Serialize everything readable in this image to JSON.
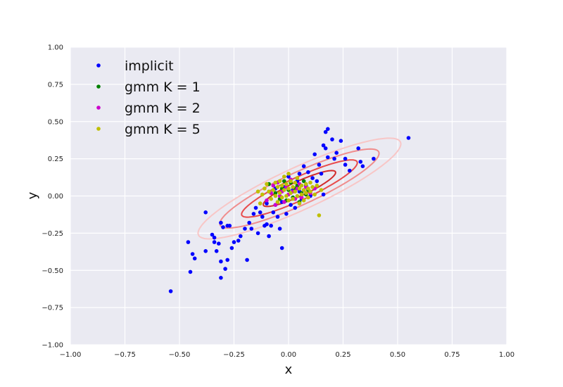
{
  "chart_data": {
    "type": "scatter",
    "title": "",
    "xlabel": "x",
    "ylabel": "y",
    "xlim": [
      -1.0,
      1.0
    ],
    "ylim": [
      -1.0,
      1.0
    ],
    "xticks": [
      "−1.00",
      "−0.75",
      "−0.50",
      "−0.25",
      "0.00",
      "0.25",
      "0.50",
      "0.75",
      "1.00"
    ],
    "yticks": [
      "−1.00",
      "−0.75",
      "−0.50",
      "−0.25",
      "0.00",
      "0.25",
      "0.50",
      "0.75",
      "1.00"
    ],
    "grid": true,
    "legend_position": "top-left",
    "background": "#eaeaf2",
    "series": [
      {
        "name": "implicit",
        "color": "#0000ff",
        "points": [
          [
            -0.54,
            -0.64
          ],
          [
            -0.46,
            -0.31
          ],
          [
            -0.45,
            -0.51
          ],
          [
            -0.44,
            -0.39
          ],
          [
            -0.43,
            -0.42
          ],
          [
            -0.38,
            -0.11
          ],
          [
            -0.38,
            -0.37
          ],
          [
            -0.35,
            -0.26
          ],
          [
            -0.34,
            -0.28
          ],
          [
            -0.34,
            -0.31
          ],
          [
            -0.33,
            -0.37
          ],
          [
            -0.32,
            -0.32
          ],
          [
            -0.31,
            -0.55
          ],
          [
            -0.31,
            -0.18
          ],
          [
            -0.31,
            -0.44
          ],
          [
            -0.3,
            -0.21
          ],
          [
            -0.29,
            -0.49
          ],
          [
            -0.28,
            -0.43
          ],
          [
            -0.28,
            -0.2
          ],
          [
            -0.27,
            -0.2
          ],
          [
            -0.26,
            -0.35
          ],
          [
            -0.25,
            -0.31
          ],
          [
            -0.23,
            -0.3
          ],
          [
            -0.22,
            -0.27
          ],
          [
            -0.2,
            -0.22
          ],
          [
            -0.19,
            -0.43
          ],
          [
            -0.18,
            -0.18
          ],
          [
            -0.17,
            -0.22
          ],
          [
            -0.16,
            -0.12
          ],
          [
            -0.15,
            -0.08
          ],
          [
            -0.14,
            -0.25
          ],
          [
            -0.13,
            -0.11
          ],
          [
            -0.12,
            -0.14
          ],
          [
            -0.11,
            -0.2
          ],
          [
            -0.1,
            -0.05
          ],
          [
            -0.1,
            -0.19
          ],
          [
            -0.09,
            -0.27
          ],
          [
            -0.08,
            -0.2
          ],
          [
            -0.07,
            -0.11
          ],
          [
            -0.06,
            -0.06
          ],
          [
            -0.05,
            -0.14
          ],
          [
            -0.04,
            -0.22
          ],
          [
            -0.03,
            -0.35
          ],
          [
            -0.03,
            -0.04
          ],
          [
            -0.02,
            0.06
          ],
          [
            -0.01,
            -0.12
          ],
          [
            0.0,
            0.13
          ],
          [
            0.01,
            -0.06
          ],
          [
            0.02,
            0.04
          ],
          [
            0.03,
            -0.08
          ],
          [
            0.04,
            0.1
          ],
          [
            0.05,
            0.03
          ],
          [
            0.06,
            -0.02
          ],
          [
            0.07,
            0.2
          ],
          [
            0.08,
            0.07
          ],
          [
            0.09,
            0.16
          ],
          [
            0.1,
            0.0
          ],
          [
            0.11,
            0.12
          ],
          [
            0.12,
            0.28
          ],
          [
            0.13,
            0.1
          ],
          [
            0.14,
            0.21
          ],
          [
            0.15,
            0.15
          ],
          [
            0.16,
            0.34
          ],
          [
            0.17,
            0.32
          ],
          [
            0.17,
            0.43
          ],
          [
            0.18,
            0.45
          ],
          [
            0.18,
            0.26
          ],
          [
            0.2,
            0.38
          ],
          [
            0.21,
            0.25
          ],
          [
            0.22,
            0.29
          ],
          [
            0.24,
            0.37
          ],
          [
            0.26,
            0.25
          ],
          [
            0.26,
            0.21
          ],
          [
            0.28,
            0.17
          ],
          [
            0.32,
            0.32
          ],
          [
            0.33,
            0.23
          ],
          [
            0.34,
            0.2
          ],
          [
            0.39,
            0.25
          ],
          [
            0.55,
            0.39
          ],
          [
            0.16,
            0.01
          ],
          [
            0.05,
            0.15
          ],
          [
            -0.06,
            0.05
          ]
        ]
      },
      {
        "name": "gmm K = 1",
        "color": "#008000",
        "points": [
          [
            -0.09,
            0.08
          ],
          [
            -0.06,
            0.02
          ],
          [
            -0.04,
            -0.02
          ],
          [
            -0.03,
            0.05
          ],
          [
            -0.02,
            0.1
          ],
          [
            -0.01,
            -0.03
          ],
          [
            0.0,
            0.04
          ],
          [
            0.01,
            0.09
          ],
          [
            0.02,
            -0.01
          ],
          [
            0.03,
            0.05
          ],
          [
            0.04,
            0.07
          ],
          [
            0.05,
            -0.04
          ],
          [
            0.06,
            0.02
          ],
          [
            0.07,
            0.1
          ],
          [
            0.08,
            0.01
          ],
          [
            0.09,
            0.04
          ]
        ]
      },
      {
        "name": "gmm K = 2",
        "color": "#cc00cc",
        "points": [
          [
            -0.1,
            -0.03
          ],
          [
            -0.08,
            0.02
          ],
          [
            -0.07,
            0.07
          ],
          [
            -0.05,
            0.09
          ],
          [
            -0.04,
            0.0
          ],
          [
            -0.03,
            0.03
          ],
          [
            -0.02,
            -0.04
          ],
          [
            -0.01,
            0.06
          ],
          [
            0.0,
            0.01
          ],
          [
            0.01,
            0.11
          ],
          [
            0.02,
            0.03
          ],
          [
            0.03,
            -0.02
          ],
          [
            0.04,
            0.05
          ],
          [
            0.05,
            0.08
          ],
          [
            0.06,
            -0.01
          ],
          [
            0.07,
            0.04
          ],
          [
            0.08,
            0.06
          ],
          [
            0.1,
            0.02
          ],
          [
            0.12,
            0.05
          ],
          [
            -0.06,
            -0.06
          ]
        ]
      },
      {
        "name": "gmm K = 5",
        "color": "#bfbf00",
        "points": [
          [
            -0.12,
            0.01
          ],
          [
            -0.11,
            0.05
          ],
          [
            -0.1,
            0.08
          ],
          [
            -0.09,
            0.03
          ],
          [
            -0.08,
            -0.02
          ],
          [
            -0.07,
            0.04
          ],
          [
            -0.06,
            0.09
          ],
          [
            -0.06,
            0.0
          ],
          [
            -0.05,
            0.06
          ],
          [
            -0.05,
            -0.04
          ],
          [
            -0.04,
            0.02
          ],
          [
            -0.04,
            0.1
          ],
          [
            -0.03,
            0.07
          ],
          [
            -0.03,
            -0.01
          ],
          [
            -0.02,
            0.04
          ],
          [
            -0.02,
            0.13
          ],
          [
            -0.01,
            0.0
          ],
          [
            -0.01,
            0.08
          ],
          [
            0.0,
            0.05
          ],
          [
            0.0,
            -0.03
          ],
          [
            0.01,
            0.02
          ],
          [
            0.01,
            0.1
          ],
          [
            0.02,
            0.06
          ],
          [
            0.02,
            -0.02
          ],
          [
            0.03,
            0.03
          ],
          [
            0.03,
            0.09
          ],
          [
            0.04,
            0.0
          ],
          [
            0.04,
            0.12
          ],
          [
            0.05,
            0.05
          ],
          [
            0.05,
            -0.05
          ],
          [
            0.06,
            0.07
          ],
          [
            0.06,
            0.01
          ],
          [
            0.07,
            0.04
          ],
          [
            0.07,
            -0.03
          ],
          [
            0.08,
            0.08
          ],
          [
            0.08,
            0.02
          ],
          [
            0.09,
            0.05
          ],
          [
            0.09,
            -0.01
          ],
          [
            0.1,
            0.03
          ],
          [
            0.1,
            0.09
          ],
          [
            0.11,
            0.06
          ],
          [
            0.12,
            0.01
          ],
          [
            0.13,
            0.07
          ],
          [
            0.14,
            -0.13
          ],
          [
            0.15,
            0.04
          ],
          [
            -0.13,
            -0.05
          ],
          [
            -0.14,
            0.03
          ],
          [
            0.0,
            0.15
          ]
        ]
      }
    ],
    "contours": {
      "center": [
        0.05,
        0.05
      ],
      "angle_deg": 35,
      "levels": [
        {
          "semi_major": 0.56,
          "semi_minor": 0.13,
          "color": "#f8c6c6"
        },
        {
          "semi_major": 0.44,
          "semi_minor": 0.1,
          "color": "#f08d8d"
        },
        {
          "semi_major": 0.32,
          "semi_minor": 0.07,
          "color": "#e84b4b"
        },
        {
          "semi_major": 0.2,
          "semi_minor": 0.045,
          "color": "#d22a2a"
        }
      ]
    }
  }
}
